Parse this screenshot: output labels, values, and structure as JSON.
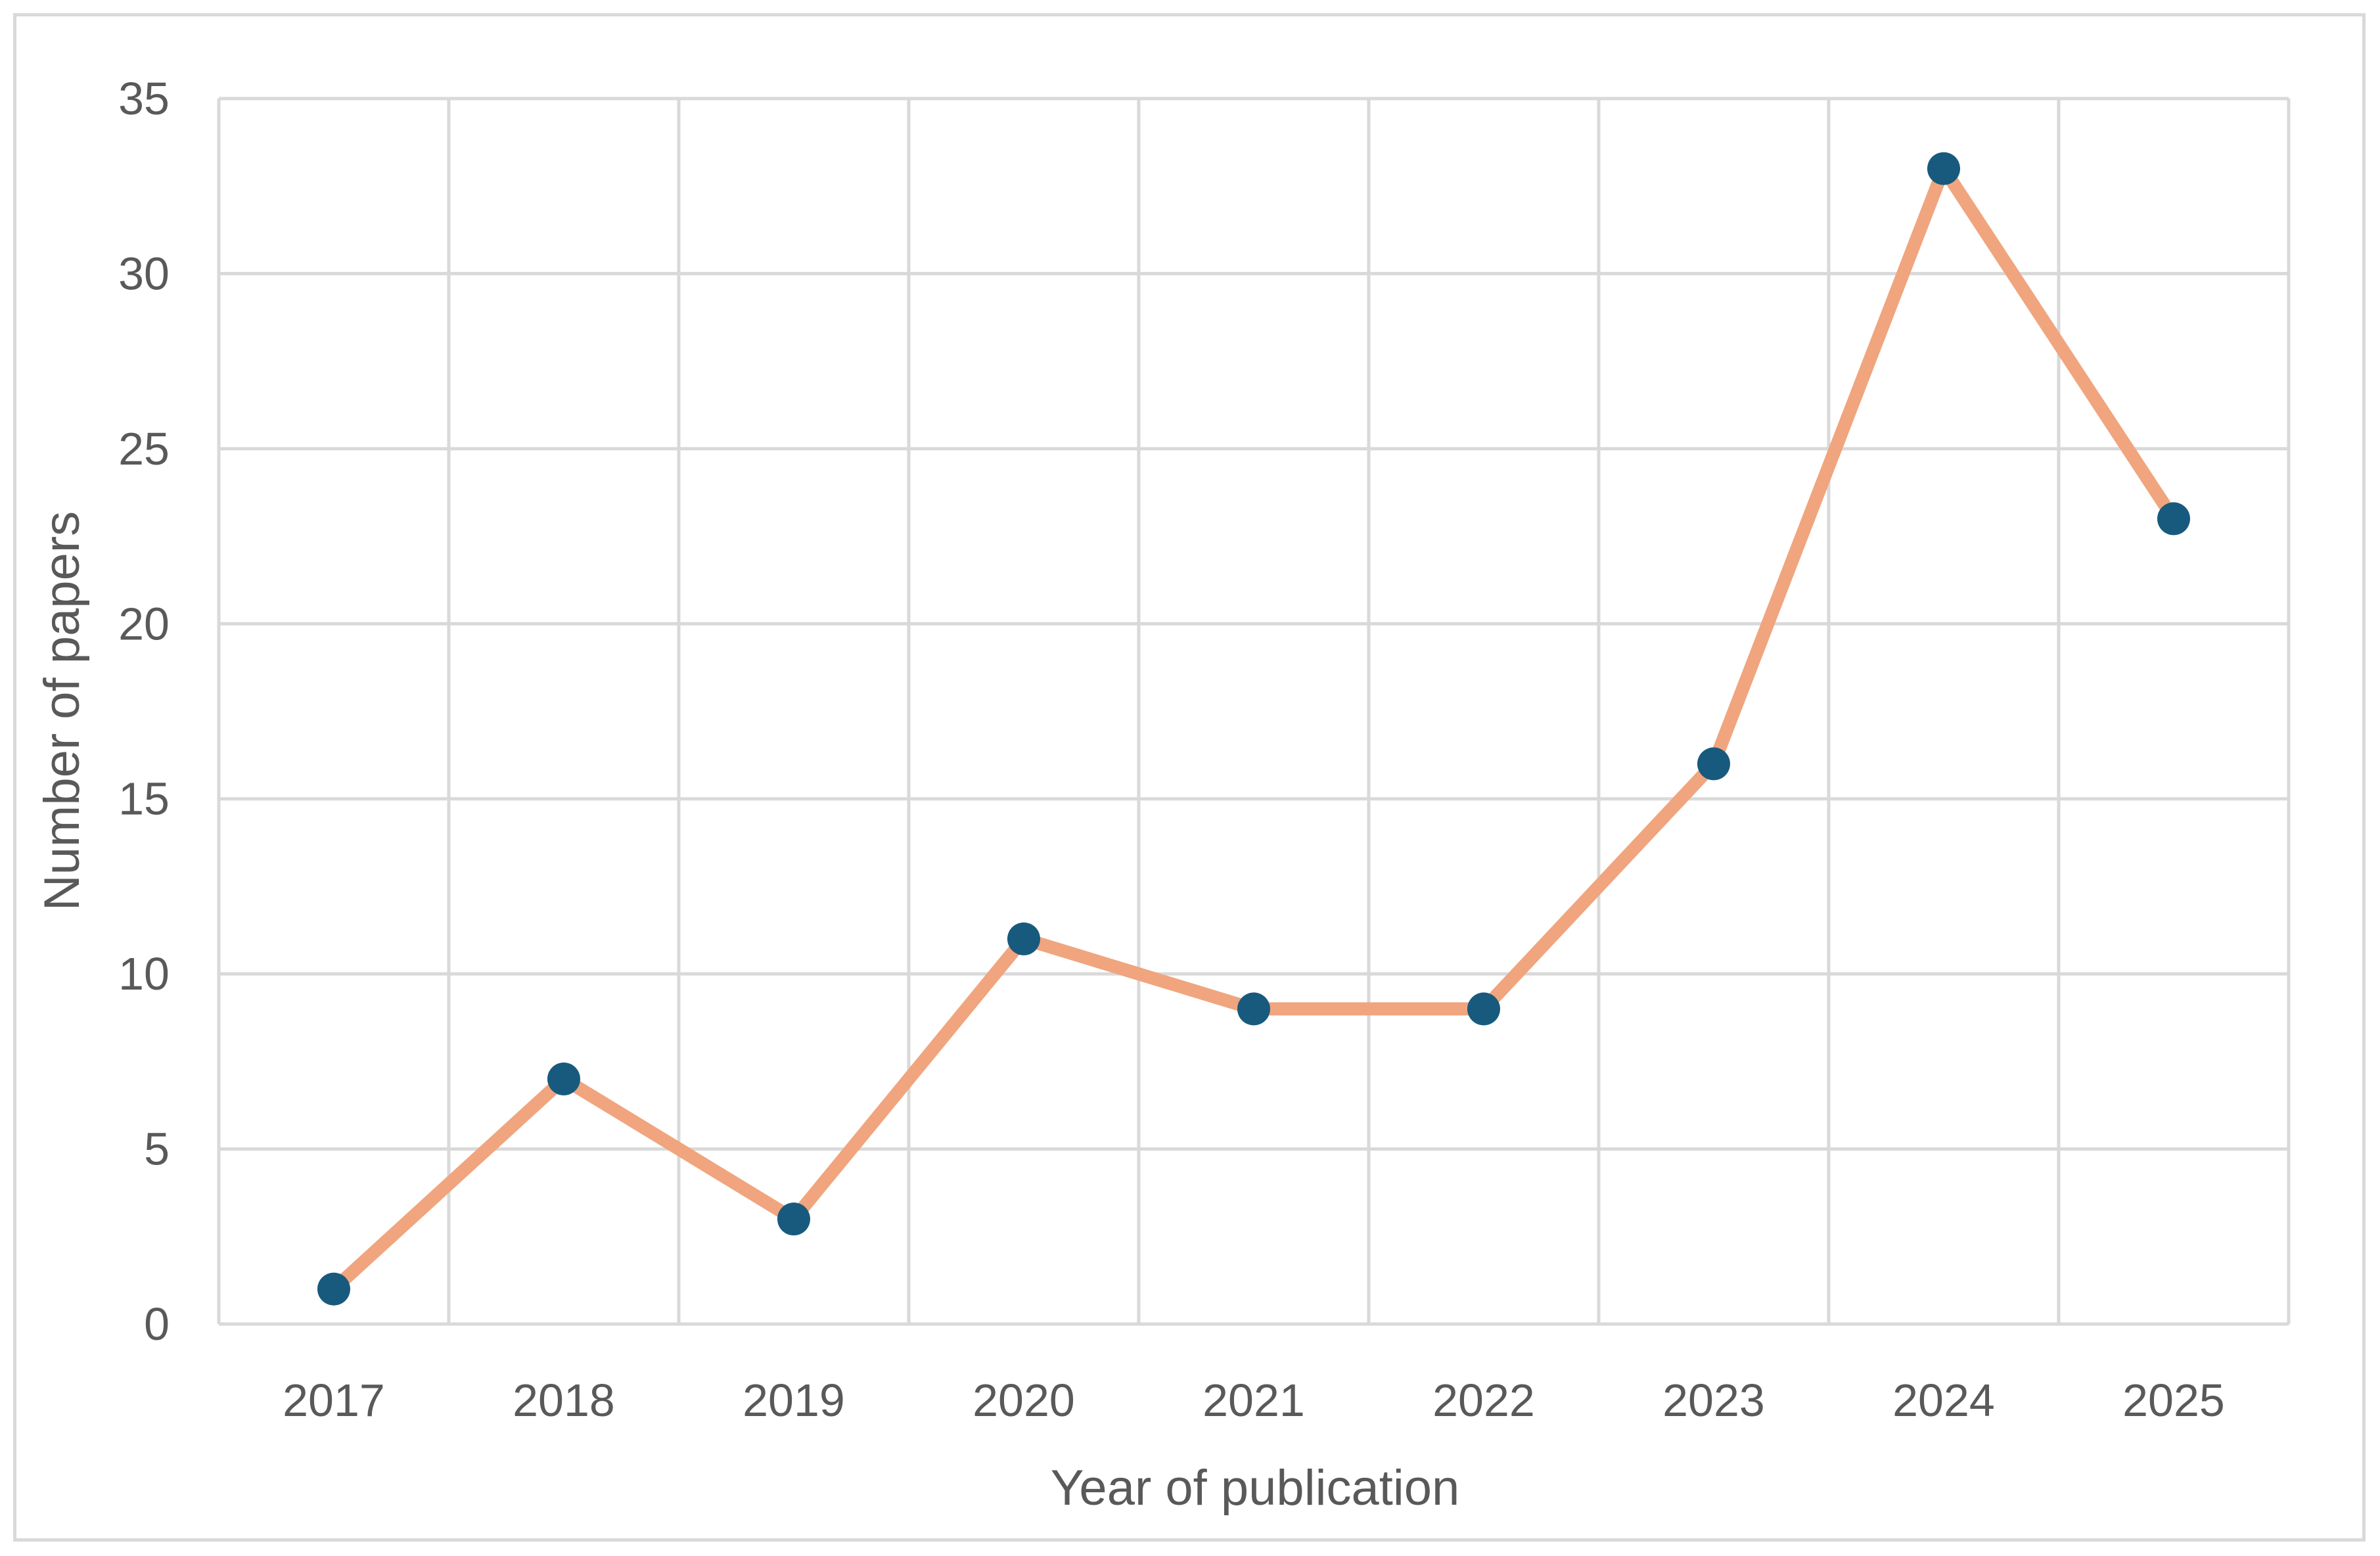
{
  "chart_data": {
    "type": "line",
    "title": "",
    "xlabel": "Year of publication",
    "ylabel": "Number of papers",
    "categories": [
      "2017",
      "2018",
      "2019",
      "2020",
      "2021",
      "2022",
      "2023",
      "2024",
      "2025"
    ],
    "series": [
      {
        "values": [
          1,
          7,
          3,
          11,
          9,
          9,
          16,
          33,
          23
        ]
      }
    ],
    "ylim": [
      0,
      35
    ],
    "yticks": [
      0,
      5,
      10,
      15,
      20,
      25,
      30,
      35
    ],
    "grid": true,
    "legend": "none",
    "colors": {
      "line": "#f0a57e",
      "marker": "#185a7d",
      "grid": "#d9d9d9",
      "text": "#595959"
    }
  }
}
